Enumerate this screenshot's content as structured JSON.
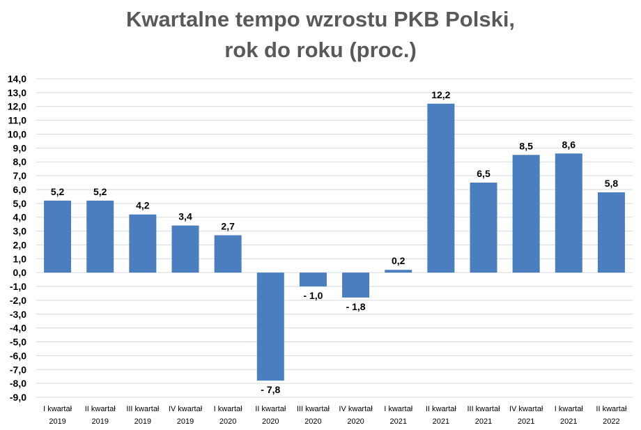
{
  "chart_data": {
    "type": "bar",
    "title_line1": "Kwartalne tempo wzrostu PKB Polski,",
    "title_line2": "rok do roku (proc.)",
    "categories": [
      [
        "I kwartał",
        "2019"
      ],
      [
        "II kwartał",
        "2019"
      ],
      [
        "III kwartał",
        "2019"
      ],
      [
        "IV kwartał",
        "2019"
      ],
      [
        "I kwartał",
        "2020"
      ],
      [
        "II kwartał",
        "2020"
      ],
      [
        "III kwartał",
        "2020"
      ],
      [
        "IV kwartał",
        "2020"
      ],
      [
        "I kwartał",
        "2021"
      ],
      [
        "II kwartał",
        "2021"
      ],
      [
        "III kwartał",
        "2021"
      ],
      [
        "IV kwartał",
        "2021"
      ],
      [
        "I kwartał",
        "2021"
      ],
      [
        "II kwartał",
        "2022"
      ]
    ],
    "values": [
      5.2,
      5.2,
      4.2,
      3.4,
      2.7,
      -7.8,
      -1.0,
      -1.8,
      0.2,
      12.2,
      6.5,
      8.5,
      8.6,
      5.8
    ],
    "value_labels": [
      "5,2",
      "5,2",
      "4,2",
      "3,4",
      "2,7",
      "- 7,8",
      "- 1,0",
      "- 1,8",
      "0,2",
      "12,2",
      "6,5",
      "8,5",
      "8,6",
      "5,8"
    ],
    "ylim": [
      -9,
      14
    ],
    "yticks": [
      "14,0",
      "13,0",
      "12,0",
      "11,0",
      "10,0",
      "9,0",
      "8,0",
      "7,0",
      "6,0",
      "5,0",
      "4,0",
      "3,0",
      "2,0",
      "1,0",
      "0,0",
      "-1,0",
      "-2,0",
      "-3,0",
      "-4,0",
      "-5,0",
      "-6,0",
      "-7,0",
      "-8,0",
      "-9,0"
    ],
    "grid": true,
    "bar_color": "#4a7ebf",
    "grid_color": "#d9d9d9"
  }
}
